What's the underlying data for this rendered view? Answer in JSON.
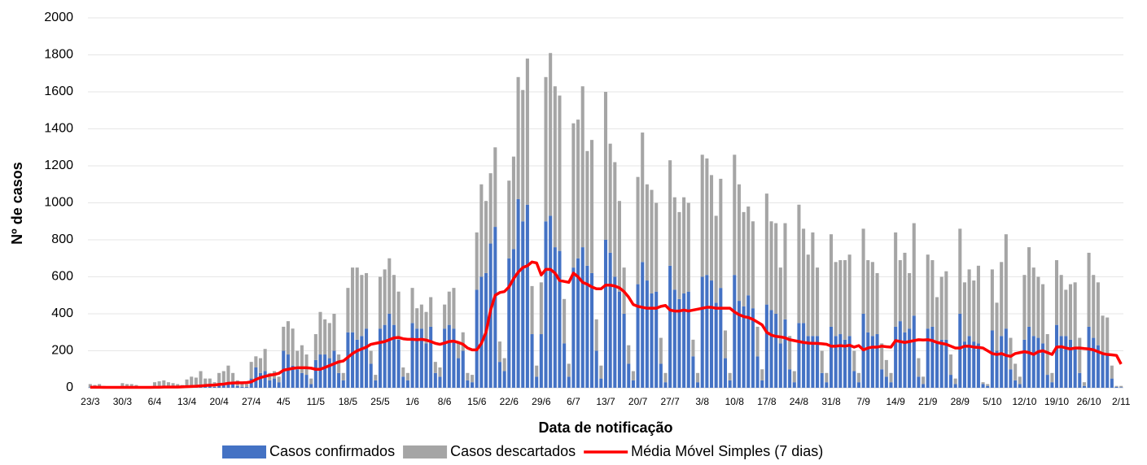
{
  "chart_data": {
    "type": "bar",
    "stacked": true,
    "y_label": "Nº de casos",
    "x_label": "Data de notificação",
    "categories": [
      "23/3",
      null,
      null,
      null,
      null,
      null,
      null,
      "30/3",
      null,
      null,
      null,
      null,
      null,
      null,
      "6/4",
      null,
      null,
      null,
      null,
      null,
      null,
      "13/4",
      null,
      null,
      null,
      null,
      null,
      null,
      "20/4",
      null,
      null,
      null,
      null,
      null,
      null,
      "27/4",
      null,
      null,
      null,
      null,
      null,
      null,
      "4/5",
      null,
      null,
      null,
      null,
      null,
      null,
      "11/5",
      null,
      null,
      null,
      null,
      null,
      null,
      "18/5",
      null,
      null,
      null,
      null,
      null,
      null,
      "25/5",
      null,
      null,
      null,
      null,
      null,
      null,
      "1/6",
      null,
      null,
      null,
      null,
      null,
      null,
      "8/6",
      null,
      null,
      null,
      null,
      null,
      null,
      "15/6",
      null,
      null,
      null,
      null,
      null,
      null,
      "22/6",
      null,
      null,
      null,
      null,
      null,
      null,
      "29/6",
      null,
      null,
      null,
      null,
      null,
      null,
      "6/7",
      null,
      null,
      null,
      null,
      null,
      null,
      "13/7",
      null,
      null,
      null,
      null,
      null,
      null,
      "20/7",
      null,
      null,
      null,
      null,
      null,
      null,
      "27/7",
      null,
      null,
      null,
      null,
      null,
      null,
      "3/8",
      null,
      null,
      null,
      null,
      null,
      null,
      "10/8",
      null,
      null,
      null,
      null,
      null,
      null,
      "17/8",
      null,
      null,
      null,
      null,
      null,
      null,
      "24/8",
      null,
      null,
      null,
      null,
      null,
      null,
      "31/8",
      null,
      null,
      null,
      null,
      null,
      null,
      "7/9",
      null,
      null,
      null,
      null,
      null,
      null,
      "14/9",
      null,
      null,
      null,
      null,
      null,
      null,
      "21/9",
      null,
      null,
      null,
      null,
      null,
      null,
      "28/9",
      null,
      null,
      null,
      null,
      null,
      null,
      "5/10",
      null,
      null,
      null,
      null,
      null,
      null,
      "12/10",
      null,
      null,
      null,
      null,
      null,
      null,
      "19/10",
      null,
      null,
      null,
      null,
      null,
      null,
      "26/10",
      null,
      null,
      null,
      null,
      null,
      null,
      "2/11"
    ],
    "series": [
      {
        "name": "Casos confirmados",
        "type": "bar",
        "color": "#4472c4",
        "values": [
          3,
          2,
          3,
          2,
          1,
          1,
          1,
          3,
          3,
          3,
          2,
          1,
          1,
          1,
          5,
          5,
          6,
          5,
          4,
          3,
          2,
          10,
          12,
          10,
          15,
          8,
          8,
          5,
          20,
          25,
          30,
          20,
          10,
          5,
          5,
          50,
          110,
          80,
          90,
          40,
          50,
          30,
          200,
          180,
          120,
          100,
          80,
          70,
          20,
          150,
          180,
          180,
          160,
          200,
          80,
          40,
          300,
          300,
          260,
          280,
          320,
          130,
          40,
          320,
          340,
          400,
          340,
          260,
          60,
          40,
          350,
          320,
          320,
          240,
          330,
          80,
          60,
          320,
          340,
          320,
          160,
          200,
          40,
          30,
          530,
          600,
          620,
          780,
          870,
          140,
          90,
          700,
          750,
          1020,
          900,
          990,
          290,
          60,
          290,
          900,
          930,
          760,
          740,
          240,
          60,
          650,
          700,
          760,
          660,
          620,
          200,
          50,
          800,
          730,
          600,
          520,
          400,
          130,
          40,
          560,
          680,
          580,
          510,
          520,
          130,
          30,
          660,
          530,
          480,
          510,
          520,
          170,
          30,
          600,
          610,
          580,
          460,
          540,
          160,
          40,
          610,
          470,
          440,
          500,
          430,
          170,
          40,
          450,
          420,
          400,
          240,
          370,
          100,
          30,
          350,
          350,
          280,
          280,
          280,
          80,
          30,
          330,
          280,
          290,
          260,
          280,
          90,
          30,
          400,
          300,
          280,
          290,
          100,
          60,
          30,
          330,
          360,
          300,
          320,
          390,
          60,
          20,
          320,
          330,
          240,
          260,
          260,
          70,
          20,
          400,
          250,
          280,
          250,
          240,
          20,
          10,
          310,
          200,
          280,
          320,
          100,
          40,
          20,
          260,
          330,
          280,
          270,
          240,
          70,
          30,
          340,
          280,
          280,
          260,
          210,
          80,
          10,
          330,
          270,
          230,
          180,
          180,
          50,
          5,
          3
        ]
      },
      {
        "name": "Casos descartados",
        "type": "bar",
        "color": "#a5a5a5",
        "values": [
          17,
          13,
          17,
          8,
          4,
          4,
          4,
          22,
          17,
          17,
          13,
          4,
          4,
          4,
          25,
          30,
          34,
          25,
          21,
          17,
          13,
          35,
          48,
          45,
          75,
          42,
          42,
          25,
          60,
          65,
          90,
          60,
          30,
          15,
          15,
          90,
          60,
          80,
          120,
          40,
          40,
          30,
          130,
          180,
          200,
          100,
          150,
          110,
          30,
          140,
          230,
          190,
          190,
          200,
          100,
          40,
          240,
          350,
          390,
          330,
          300,
          70,
          30,
          280,
          300,
          300,
          270,
          260,
          50,
          40,
          190,
          110,
          130,
          170,
          160,
          60,
          50,
          130,
          180,
          220,
          90,
          100,
          40,
          40,
          310,
          500,
          390,
          380,
          430,
          110,
          70,
          420,
          500,
          660,
          710,
          790,
          260,
          60,
          280,
          780,
          880,
          870,
          840,
          240,
          70,
          780,
          750,
          870,
          620,
          720,
          170,
          70,
          800,
          590,
          620,
          490,
          250,
          100,
          50,
          580,
          700,
          520,
          560,
          480,
          140,
          50,
          570,
          500,
          470,
          520,
          480,
          90,
          50,
          660,
          630,
          570,
          470,
          590,
          150,
          40,
          650,
          630,
          510,
          480,
          470,
          160,
          60,
          600,
          480,
          490,
          410,
          520,
          180,
          60,
          640,
          510,
          440,
          560,
          370,
          120,
          50,
          500,
          400,
          400,
          430,
          440,
          110,
          50,
          460,
          390,
          400,
          330,
          140,
          90,
          50,
          510,
          330,
          430,
          300,
          500,
          100,
          40,
          400,
          360,
          250,
          340,
          370,
          110,
          30,
          460,
          320,
          360,
          330,
          420,
          10,
          10,
          330,
          260,
          400,
          510,
          170,
          90,
          40,
          350,
          430,
          370,
          330,
          320,
          220,
          50,
          350,
          330,
          250,
          300,
          360,
          190,
          20,
          400,
          340,
          340,
          210,
          200,
          70,
          5,
          7
        ]
      },
      {
        "name": "Média Móvel Simples (7 dias)",
        "type": "line",
        "color": "#ff0000",
        "values": [
          3,
          3,
          3,
          2,
          2,
          2,
          2,
          2,
          2,
          2,
          2,
          2,
          2,
          2,
          3,
          3,
          4,
          4,
          4,
          4,
          5,
          6,
          7,
          8,
          10,
          12,
          14,
          15,
          18,
          20,
          24,
          26,
          27,
          27,
          28,
          32,
          45,
          55,
          62,
          68,
          72,
          78,
          95,
          100,
          105,
          108,
          108,
          108,
          106,
          100,
          100,
          110,
          120,
          130,
          140,
          145,
          165,
          185,
          200,
          210,
          220,
          235,
          240,
          245,
          250,
          260,
          270,
          272,
          265,
          262,
          262,
          260,
          262,
          258,
          250,
          240,
          235,
          242,
          250,
          252,
          245,
          235,
          215,
          205,
          205,
          240,
          300,
          420,
          500,
          515,
          520,
          545,
          590,
          625,
          650,
          660,
          680,
          675,
          610,
          640,
          640,
          620,
          580,
          575,
          570,
          620,
          600,
          570,
          560,
          545,
          535,
          535,
          555,
          555,
          550,
          540,
          520,
          490,
          450,
          440,
          435,
          430,
          430,
          430,
          440,
          445,
          420,
          415,
          415,
          420,
          415,
          420,
          425,
          430,
          435,
          435,
          430,
          430,
          430,
          430,
          410,
          395,
          385,
          380,
          370,
          355,
          340,
          300,
          285,
          278,
          275,
          270,
          260,
          255,
          250,
          245,
          242,
          240,
          240,
          238,
          235,
          225,
          225,
          228,
          225,
          230,
          220,
          228,
          205,
          215,
          220,
          220,
          225,
          222,
          220,
          255,
          250,
          245,
          250,
          255,
          260,
          258,
          260,
          255,
          245,
          240,
          235,
          225,
          215,
          215,
          225,
          225,
          220,
          218,
          215,
          200,
          185,
          180,
          185,
          175,
          170,
          185,
          190,
          195,
          190,
          180,
          195,
          200,
          190,
          180,
          220,
          222,
          215,
          210,
          215,
          215,
          212,
          210,
          205,
          195,
          185,
          180,
          178,
          175,
          128
        ]
      }
    ],
    "ylim": [
      0,
      2000
    ],
    "yticks": [
      0,
      200,
      400,
      600,
      800,
      1000,
      1200,
      1400,
      1600,
      1800,
      2000
    ],
    "grid": true
  }
}
